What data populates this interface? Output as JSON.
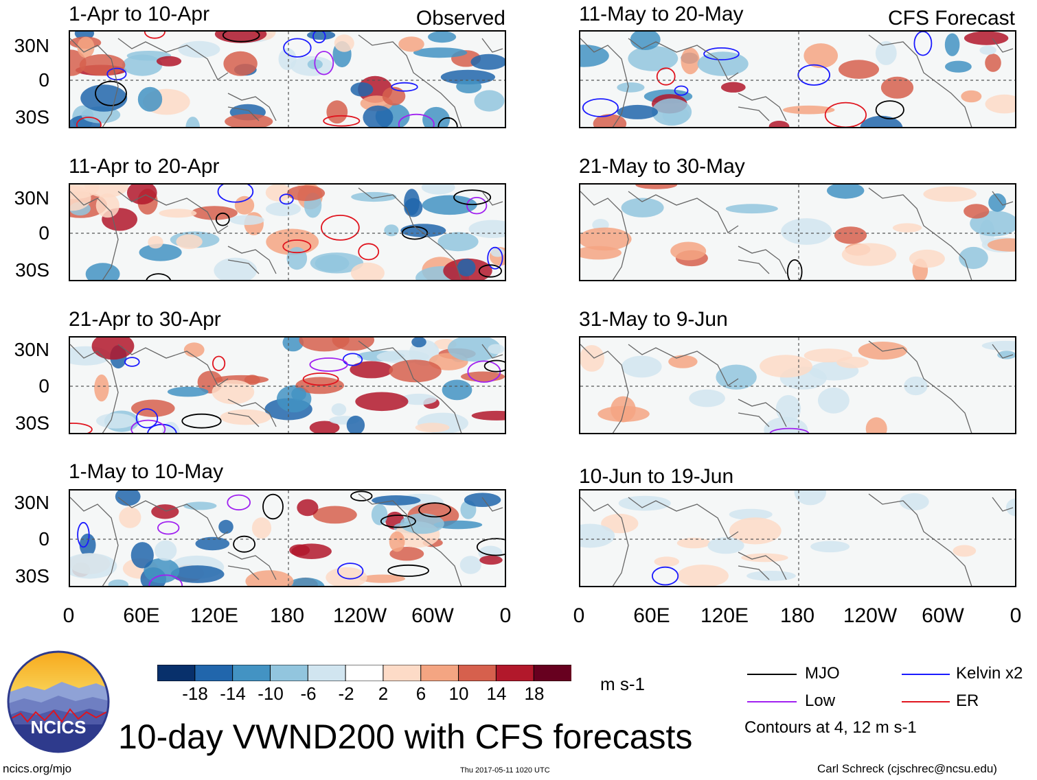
{
  "figure": {
    "title": "10-day VWND200 with CFS forecasts",
    "observed_label": "Observed",
    "forecast_label": "CFS Forecast",
    "units": "m s-1",
    "contour_note": "Contours at 4, 12 m s-1",
    "site": "ncics.org/mjo",
    "timestamp": "Thu 2017-05-11 1020 UTC",
    "author": "Carl Schreck (cjschrec@ncsu.edu)",
    "logo_text": "NCICS"
  },
  "panels": {
    "observed": [
      {
        "title": "1-Apr to 10-Apr"
      },
      {
        "title": "11-Apr to 20-Apr"
      },
      {
        "title": "21-Apr to 30-Apr"
      },
      {
        "title": "1-May to 10-May"
      }
    ],
    "forecast": [
      {
        "title": "11-May to 20-May"
      },
      {
        "title": "21-May to 30-May"
      },
      {
        "title": "31-May to 9-Jun"
      },
      {
        "title": "10-Jun to 19-Jun"
      }
    ]
  },
  "axes": {
    "lat_labels": [
      "30N",
      "0",
      "30S"
    ],
    "lon_labels": [
      "0",
      "60E",
      "120E",
      "180",
      "120W",
      "60W",
      "0"
    ]
  },
  "colorbar": {
    "colors": [
      "#08306b",
      "#2166ac",
      "#4393c3",
      "#92c5de",
      "#d1e5f0",
      "#ffffff",
      "#fddbc7",
      "#f4a582",
      "#d6604d",
      "#b2182b",
      "#67001f"
    ],
    "labels": [
      "-18",
      "-14",
      "-10",
      "-6",
      "-2",
      "2",
      "6",
      "10",
      "14",
      "18"
    ]
  },
  "legend": [
    {
      "label": "MJO",
      "color": "#000000"
    },
    {
      "label": "Kelvin x2",
      "color": "#1a1aff"
    },
    {
      "label": "Low",
      "color": "#a020f0"
    },
    {
      "label": "ER",
      "color": "#e0141e"
    }
  ]
}
